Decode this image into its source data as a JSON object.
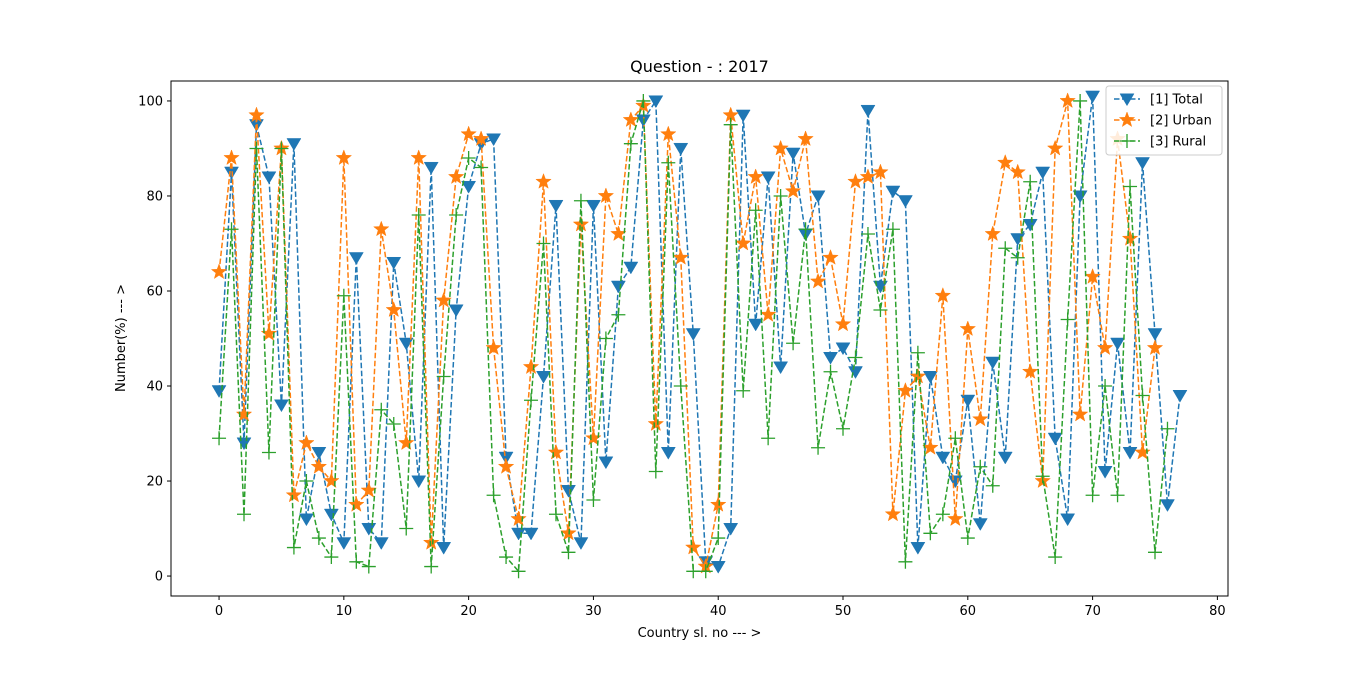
{
  "chart_data": {
    "type": "line",
    "title": "Question - : 2017",
    "xlabel": "Country sl. no --- >",
    "ylabel": "Number(%) --- >",
    "xlim": [
      -3.85,
      80.85
    ],
    "ylim": [
      -4.2,
      104.2
    ],
    "xticks": [
      0,
      10,
      20,
      30,
      40,
      50,
      60,
      70,
      80
    ],
    "yticks": [
      0,
      20,
      40,
      60,
      80,
      100
    ],
    "legend_position": "top-right",
    "grid": false,
    "series": [
      {
        "name": "[1] Total",
        "color": "#1f77b4",
        "marker": "triangle-down",
        "linestyle": "dashed",
        "x": [
          0,
          1,
          2,
          3,
          4,
          5,
          6,
          7,
          8,
          9,
          10,
          11,
          12,
          13,
          14,
          15,
          16,
          17,
          18,
          19,
          20,
          21,
          22,
          23,
          24,
          25,
          26,
          27,
          28,
          29,
          30,
          31,
          32,
          33,
          34,
          35,
          36,
          37,
          38,
          39,
          40,
          41,
          42,
          43,
          44,
          45,
          46,
          47,
          48,
          49,
          50,
          51,
          52,
          53,
          54,
          55,
          56,
          57,
          58,
          59,
          60,
          61,
          62,
          63,
          64,
          65,
          66,
          67,
          68,
          69,
          70,
          71,
          72,
          73,
          74,
          75,
          76,
          77
        ],
        "values": [
          39,
          85,
          28,
          95,
          84,
          36,
          91,
          12,
          26,
          13,
          7,
          67,
          10,
          7,
          66,
          49,
          20,
          86,
          6,
          56,
          82,
          91,
          92,
          25,
          9,
          9,
          42,
          78,
          18,
          7,
          78,
          24,
          61,
          65,
          96,
          100,
          26,
          90,
          51,
          3,
          2,
          10,
          97,
          53,
          84,
          44,
          89,
          72,
          80,
          46,
          48,
          43,
          98,
          61,
          81,
          79,
          6,
          42,
          25,
          20,
          37,
          11,
          45,
          25,
          71,
          74,
          85,
          29,
          12,
          80,
          101,
          22,
          49,
          26,
          87,
          51,
          15,
          38
        ]
      },
      {
        "name": "[2] Urban",
        "color": "#ff7f0e",
        "marker": "star",
        "linestyle": "dashed",
        "x": [
          0,
          1,
          2,
          3,
          4,
          5,
          6,
          7,
          8,
          9,
          10,
          11,
          12,
          13,
          14,
          15,
          16,
          17,
          18,
          19,
          20,
          21,
          22,
          23,
          24,
          25,
          26,
          27,
          28,
          29,
          30,
          31,
          32,
          33,
          34,
          35,
          36,
          37,
          38,
          39,
          40,
          41,
          42,
          43,
          44,
          45,
          46,
          47,
          48,
          49,
          50,
          51,
          52,
          53,
          54,
          55,
          56,
          57,
          58,
          59,
          60,
          61,
          62,
          63,
          64,
          65,
          66,
          67,
          68,
          69,
          70,
          71,
          72,
          73,
          74,
          75
        ],
        "values": [
          64,
          88,
          34,
          97,
          51,
          90,
          17,
          28,
          23,
          20,
          88,
          15,
          18,
          73,
          56,
          28,
          88,
          7,
          58,
          84,
          93,
          92,
          48,
          23,
          12,
          44,
          83,
          26,
          9,
          74,
          29,
          80,
          72,
          96,
          99,
          32,
          93,
          67,
          6,
          2,
          15,
          97,
          70,
          84,
          55,
          90,
          81,
          92,
          62,
          67,
          53,
          83,
          84,
          85,
          13,
          39,
          42,
          27,
          59,
          12,
          52,
          33,
          72,
          87,
          85,
          43,
          20,
          90,
          100,
          34,
          63,
          48,
          92,
          71,
          26,
          48
        ]
      },
      {
        "name": "[3] Rural",
        "color": "#2ca02c",
        "marker": "plus",
        "linestyle": "dashed",
        "x": [
          0,
          1,
          2,
          3,
          4,
          5,
          6,
          7,
          8,
          9,
          10,
          11,
          12,
          13,
          14,
          15,
          16,
          17,
          18,
          19,
          20,
          21,
          22,
          23,
          24,
          25,
          26,
          27,
          28,
          29,
          30,
          31,
          32,
          33,
          34,
          35,
          36,
          37,
          38,
          39,
          40,
          41,
          42,
          43,
          44,
          45,
          46,
          47,
          48,
          49,
          50,
          51,
          52,
          53,
          54,
          55,
          56,
          57,
          58,
          59,
          60,
          61,
          62,
          63,
          64,
          65,
          66,
          67,
          68,
          69,
          70,
          71,
          72,
          73,
          74,
          75,
          76
        ],
        "values": [
          29,
          73,
          13,
          90,
          26,
          90,
          6,
          20,
          8,
          4,
          59,
          3,
          2,
          35,
          32,
          10,
          76,
          2,
          42,
          76,
          88,
          86,
          17,
          4,
          1,
          37,
          70,
          13,
          5,
          79,
          16,
          50,
          55,
          91,
          100,
          22,
          87,
          40,
          1,
          1,
          8,
          95,
          39,
          77,
          29,
          80,
          49,
          73,
          27,
          43,
          31,
          46,
          72,
          56,
          73,
          3,
          47,
          9,
          13,
          29,
          8,
          23,
          19,
          69,
          67,
          83,
          21,
          4,
          54,
          100,
          17,
          40,
          17,
          82,
          38,
          5,
          31
        ]
      }
    ]
  }
}
